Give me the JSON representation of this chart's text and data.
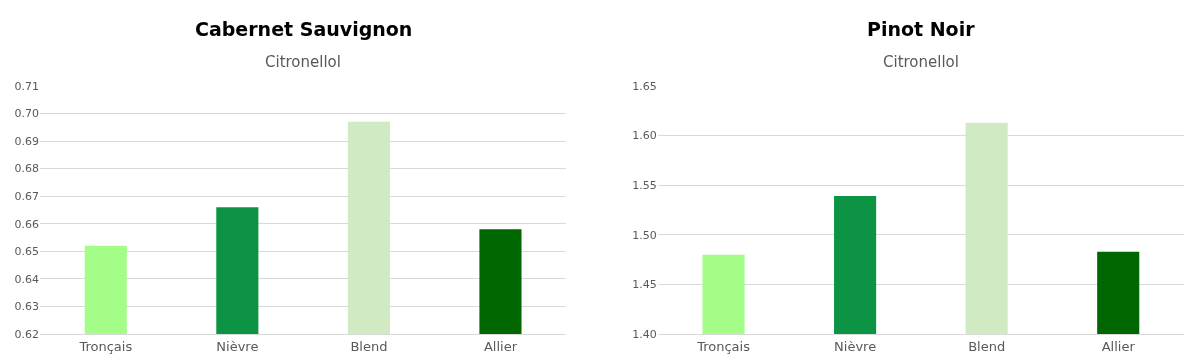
{
  "chart_data": [
    {
      "type": "bar",
      "title": "Cabernet Sauvignon",
      "subtitle": "Citronellol",
      "categories": [
        "Tronçais",
        "Nièvre",
        "Blend",
        "Allier"
      ],
      "values": [
        0.652,
        0.666,
        0.697,
        0.658
      ],
      "colors": [
        "#a4fd86",
        "#0c9444",
        "#d0ebc3",
        "#006600"
      ],
      "ylim": [
        0.62,
        0.71
      ],
      "yticks": [
        {
          "value": 0.62,
          "label": "0.62"
        },
        0.63,
        0.64,
        0.65,
        0.66,
        0.67,
        0.68,
        0.69,
        {
          "value": 0.7,
          "label": "0.70"
        },
        0.71
      ],
      "grid": "y"
    },
    {
      "type": "bar",
      "title": "Pinot Noir",
      "subtitle": "Citronellol",
      "categories": [
        "Tronçais",
        "Nièvre",
        "Blend",
        "Allier"
      ],
      "values": [
        1.48,
        1.539,
        1.613,
        1.483
      ],
      "colors": [
        "#a4fd86",
        "#0c9444",
        "#d0ebc3",
        "#006600"
      ],
      "ylim": [
        1.4,
        1.65
      ],
      "yticks": [
        {
          "value": 1.4,
          "label": "1.40"
        },
        1.45,
        {
          "value": 1.5,
          "label": "1.50"
        },
        1.55,
        {
          "value": 1.6,
          "label": "1.60"
        },
        1.65
      ],
      "grid": "y"
    }
  ]
}
